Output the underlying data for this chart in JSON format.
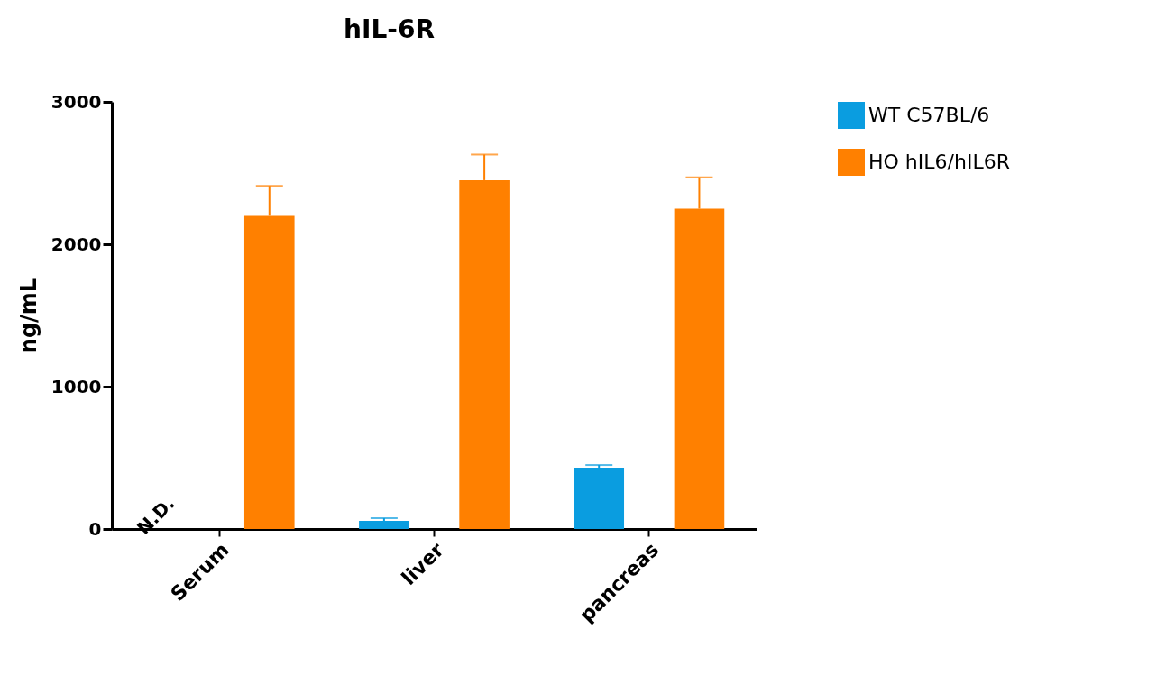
{
  "chart_data": {
    "type": "bar",
    "title": "hIL-6R",
    "ylabel": "ng/mL",
    "categories": [
      "Serum",
      "liver",
      "pancreas"
    ],
    "series": [
      {
        "name": "WT C57BL/6",
        "color": "#0a9de0",
        "values": [
          null,
          57,
          430
        ],
        "errors": [
          null,
          [
            57,
            76
          ],
          [
            430,
            449
          ]
        ]
      },
      {
        "name": "HO hIL6/hIL6R",
        "color": "#ff8000",
        "values": [
          2200,
          2450,
          2250
        ],
        "errors": [
          [
            2200,
            2410
          ],
          [
            2450,
            2630
          ],
          [
            2250,
            2470
          ]
        ]
      }
    ],
    "ylim": [
      0,
      3000
    ],
    "yticks": [
      0,
      1000,
      2000,
      3000
    ],
    "grid": false,
    "legend": "top right",
    "annotations": [
      "N.D."
    ]
  }
}
